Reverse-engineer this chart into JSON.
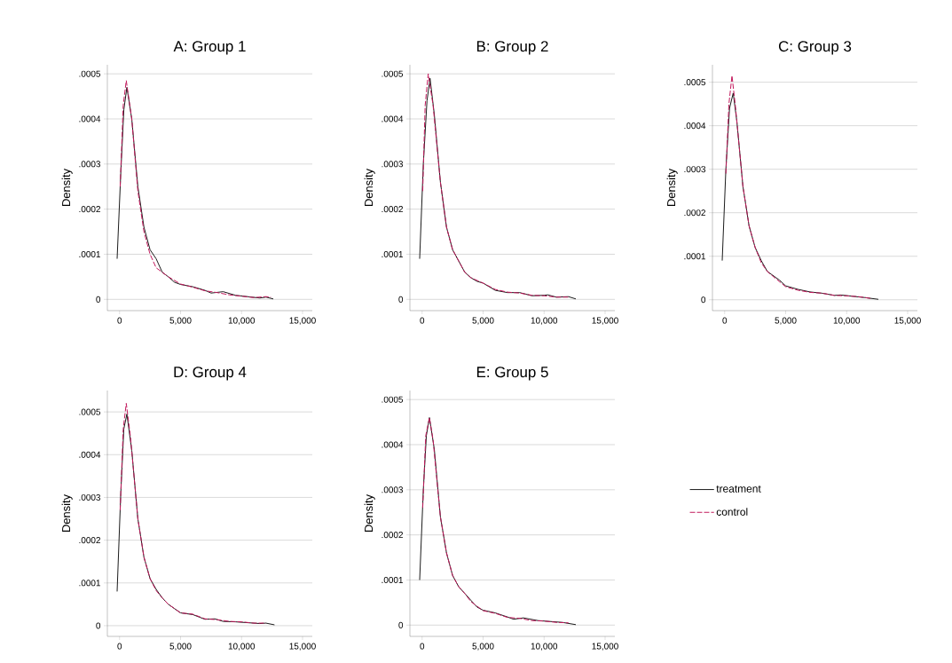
{
  "chart_data": [
    {
      "type": "line",
      "title": "A: Group 1",
      "ylabel": "Density",
      "xlim": [
        -1000,
        15800
      ],
      "ylim": [
        -2.5e-05,
        0.00052
      ],
      "grid": "y",
      "xticks": [
        0,
        {
          "value": 5000,
          "label": "5,000"
        },
        {
          "value": 10000,
          "label": "10,000"
        },
        {
          "value": 15000,
          "label": "15,000"
        }
      ],
      "yticks": [
        0,
        {
          "value": 0.0001,
          "label": ".0001"
        },
        {
          "value": 0.0002,
          "label": ".0002"
        },
        {
          "value": 0.0003,
          "label": ".0003"
        },
        {
          "value": 0.0004,
          "label": ".0004"
        },
        {
          "value": 0.0005,
          "label": ".0005"
        }
      ],
      "series": [
        {
          "color": "#1a1a1a",
          "line_style": "solid",
          "x": [
            -200,
            100,
            350,
            600,
            1000,
            1500,
            2000,
            2500,
            3000,
            3500,
            4000,
            4500,
            5000,
            6000,
            7000,
            7500,
            8500,
            9500,
            10500,
            11500,
            12000,
            12600
          ],
          "values": [
            9e-05,
            0.00028,
            0.00042,
            0.00047,
            0.0004,
            0.00025,
            0.00016,
            0.00011,
            9e-05,
            6e-05,
            5e-05,
            3.8e-05,
            3.3e-05,
            2.8e-05,
            2e-05,
            1.4e-05,
            1.7e-05,
            9e-06,
            6e-06,
            3e-06,
            5e-06,
            1e-06
          ]
        },
        {
          "color": "#c2185b",
          "line_style": "dashed",
          "x": [
            50,
            300,
            550,
            1000,
            1500,
            2000,
            2500,
            3000,
            3500,
            4000,
            5000,
            6000,
            7000,
            8000,
            9000,
            10000,
            11000,
            12000,
            12400
          ],
          "values": [
            0.00025,
            0.00043,
            0.000485,
            0.0004,
            0.00024,
            0.00015,
            0.0001,
            7e-05,
            6e-05,
            5e-05,
            3.4e-05,
            2.7e-05,
            1.9e-05,
            1.5e-05,
            1e-05,
            7e-06,
            4e-06,
            6e-06,
            5e-06
          ]
        }
      ]
    },
    {
      "type": "line",
      "title": "B: Group 2",
      "ylabel": "Density",
      "xlim": [
        -1000,
        15800
      ],
      "ylim": [
        -2.5e-05,
        0.00052
      ],
      "grid": "y",
      "xticks": [
        0,
        {
          "value": 5000,
          "label": "5,000"
        },
        {
          "value": 10000,
          "label": "10,000"
        },
        {
          "value": 15000,
          "label": "15,000"
        }
      ],
      "yticks": [
        0,
        {
          "value": 0.0001,
          "label": ".0001"
        },
        {
          "value": 0.0002,
          "label": ".0002"
        },
        {
          "value": 0.0003,
          "label": ".0003"
        },
        {
          "value": 0.0004,
          "label": ".0004"
        },
        {
          "value": 0.0005,
          "label": ".0005"
        }
      ],
      "series": [
        {
          "color": "#1a1a1a",
          "line_style": "solid",
          "x": [
            -200,
            100,
            400,
            650,
            1000,
            1500,
            2000,
            2500,
            3000,
            3500,
            4000,
            4500,
            5000,
            5500,
            6000,
            7000,
            8000,
            9000,
            10000,
            10300,
            11000,
            12000,
            12600
          ],
          "values": [
            9e-05,
            0.0003,
            0.00044,
            0.00049,
            0.00041,
            0.00026,
            0.00016,
            0.00011,
            8.5e-05,
            6e-05,
            4.8e-05,
            4e-05,
            3.6e-05,
            2.8e-05,
            2e-05,
            1.5e-05,
            1.5e-05,
            8e-06,
            9e-06,
            1e-05,
            5e-06,
            6e-06,
            1e-06
          ]
        },
        {
          "color": "#c2185b",
          "line_style": "dashed",
          "x": [
            50,
            250,
            500,
            900,
            1500,
            2000,
            2500,
            3000,
            3500,
            4000,
            5000,
            6000,
            7000,
            8000,
            9000,
            10000,
            11000,
            12000
          ],
          "values": [
            0.00024,
            0.00043,
            0.0005,
            0.00043,
            0.00026,
            0.00016,
            0.00011,
            8.5e-05,
            6e-05,
            4.8e-05,
            3.6e-05,
            2.2e-05,
            1.6e-05,
            1.4e-05,
            9e-06,
            8e-06,
            5e-06,
            5e-06
          ]
        }
      ]
    },
    {
      "type": "line",
      "title": "C: Group 3",
      "ylabel": "Density",
      "xlim": [
        -1000,
        15800
      ],
      "ylim": [
        -2.5e-05,
        0.00054
      ],
      "grid": "y",
      "xticks": [
        0,
        {
          "value": 5000,
          "label": "5,000"
        },
        {
          "value": 10000,
          "label": "10,000"
        },
        {
          "value": 15000,
          "label": "15,000"
        }
      ],
      "yticks": [
        0,
        {
          "value": 0.0001,
          "label": ".0001"
        },
        {
          "value": 0.0002,
          "label": ".0002"
        },
        {
          "value": 0.0003,
          "label": ".0003"
        },
        {
          "value": 0.0004,
          "label": ".0004"
        },
        {
          "value": 0.0005,
          "label": ".0005"
        }
      ],
      "series": [
        {
          "color": "#1a1a1a",
          "line_style": "solid",
          "x": [
            -200,
            100,
            400,
            700,
            1000,
            1500,
            2000,
            2500,
            3000,
            3500,
            4000,
            4500,
            5000,
            6000,
            7000,
            8000,
            9000,
            9500,
            10500,
            11500,
            12600
          ],
          "values": [
            9e-05,
            0.0003,
            0.00044,
            0.000475,
            0.00041,
            0.00026,
            0.00017,
            0.00012,
            9e-05,
            6.5e-05,
            5.5e-05,
            4.5e-05,
            3.2e-05,
            2.4e-05,
            1.8e-05,
            1.5e-05,
            1e-05,
            1.1e-05,
            8e-06,
            5e-06,
            1e-06
          ]
        },
        {
          "color": "#c2185b",
          "line_style": "dashed",
          "x": [
            100,
            350,
            600,
            900,
            1500,
            2000,
            2500,
            3000,
            3500,
            4000,
            5000,
            6000,
            7000,
            8000,
            9000,
            10000,
            11000,
            12000
          ],
          "values": [
            0.00029,
            0.00045,
            0.000515,
            0.00044,
            0.00026,
            0.00017,
            0.00012,
            8.5e-05,
            6.5e-05,
            5.3e-05,
            3e-05,
            2.2e-05,
            1.7e-05,
            1.5e-05,
            1e-05,
            9e-06,
            7e-06,
            3e-06
          ]
        }
      ]
    },
    {
      "type": "line",
      "title": "D: Group 4",
      "ylabel": "Density",
      "xlim": [
        -1000,
        15800
      ],
      "ylim": [
        -2.5e-05,
        0.00055
      ],
      "grid": "y",
      "xticks": [
        0,
        {
          "value": 5000,
          "label": "5,000"
        },
        {
          "value": 10000,
          "label": "10,000"
        },
        {
          "value": 15000,
          "label": "15,000"
        }
      ],
      "yticks": [
        0,
        {
          "value": 0.0001,
          "label": ".0001"
        },
        {
          "value": 0.0002,
          "label": ".0002"
        },
        {
          "value": 0.0003,
          "label": ".0003"
        },
        {
          "value": 0.0004,
          "label": ".0004"
        },
        {
          "value": 0.0005,
          "label": ".0005"
        }
      ],
      "series": [
        {
          "color": "#1a1a1a",
          "line_style": "solid",
          "x": [
            -200,
            100,
            350,
            600,
            1000,
            1500,
            2000,
            2500,
            3000,
            3500,
            4000,
            4500,
            5000,
            6000,
            7000,
            7800,
            8500,
            9500,
            10500,
            11500,
            12000,
            12700
          ],
          "values": [
            8e-05,
            0.00031,
            0.00046,
            0.000495,
            0.00041,
            0.00025,
            0.00016,
            0.00011,
            8.5e-05,
            6.5e-05,
            5e-05,
            4e-05,
            3e-05,
            2.6e-05,
            1.5e-05,
            1.6e-05,
            1e-05,
            9e-06,
            7e-06,
            5e-06,
            6e-06,
            2e-06
          ]
        },
        {
          "color": "#c2185b",
          "line_style": "dashed",
          "x": [
            50,
            300,
            550,
            900,
            1500,
            2000,
            2500,
            3000,
            3500,
            4000,
            5000,
            6000,
            7000,
            8000,
            9000,
            10000,
            11000,
            12000
          ],
          "values": [
            0.00027,
            0.00046,
            0.00052,
            0.00044,
            0.00025,
            0.00016,
            0.00011,
            8.2e-05,
            6.5e-05,
            5e-05,
            3e-05,
            2.7e-05,
            1.6e-05,
            1.4e-05,
            1e-05,
            9e-06,
            6e-06,
            6e-06
          ]
        }
      ]
    },
    {
      "type": "line",
      "title": "E: Group 5",
      "ylabel": "Density",
      "xlim": [
        -1000,
        15800
      ],
      "ylim": [
        -2.5e-05,
        0.00052
      ],
      "grid": "y",
      "legend": "right",
      "xticks": [
        0,
        {
          "value": 5000,
          "label": "5,000"
        },
        {
          "value": 10000,
          "label": "10,000"
        },
        {
          "value": 15000,
          "label": "15,000"
        }
      ],
      "yticks": [
        0,
        {
          "value": 0.0001,
          "label": ".0001"
        },
        {
          "value": 0.0002,
          "label": ".0002"
        },
        {
          "value": 0.0003,
          "label": ".0003"
        },
        {
          "value": 0.0004,
          "label": ".0004"
        },
        {
          "value": 0.0005,
          "label": ".0005"
        }
      ],
      "series": [
        {
          "name": "treatment",
          "color": "#1a1a1a",
          "line_style": "solid",
          "x": [
            -200,
            100,
            350,
            600,
            1000,
            1500,
            2000,
            2500,
            3000,
            3500,
            4000,
            4500,
            5000,
            6000,
            7000,
            7500,
            8300,
            9500,
            10500,
            11500,
            12600
          ],
          "values": [
            0.0001,
            0.0003,
            0.00042,
            0.00046,
            0.00039,
            0.00024,
            0.00016,
            0.00011,
            8.5e-05,
            7e-05,
            5.5e-05,
            4e-05,
            3.3e-05,
            2.7e-05,
            1.8e-05,
            1.3e-05,
            1.6e-05,
            1e-05,
            8e-06,
            6e-06,
            1e-06
          ]
        },
        {
          "name": "control",
          "color": "#c2185b",
          "line_style": "dashed",
          "x": [
            50,
            300,
            600,
            900,
            1500,
            2000,
            2500,
            3000,
            3500,
            4000,
            5000,
            6000,
            7000,
            8000,
            9000,
            10000,
            11000,
            12000
          ],
          "values": [
            0.00026,
            0.00042,
            0.00046,
            0.00041,
            0.00024,
            0.00016,
            0.00011,
            8.5e-05,
            7e-05,
            5.2e-05,
            3.2e-05,
            2.6e-05,
            1.7e-05,
            1.5e-05,
            1e-05,
            9e-06,
            6e-06,
            5e-06
          ]
        }
      ]
    }
  ]
}
